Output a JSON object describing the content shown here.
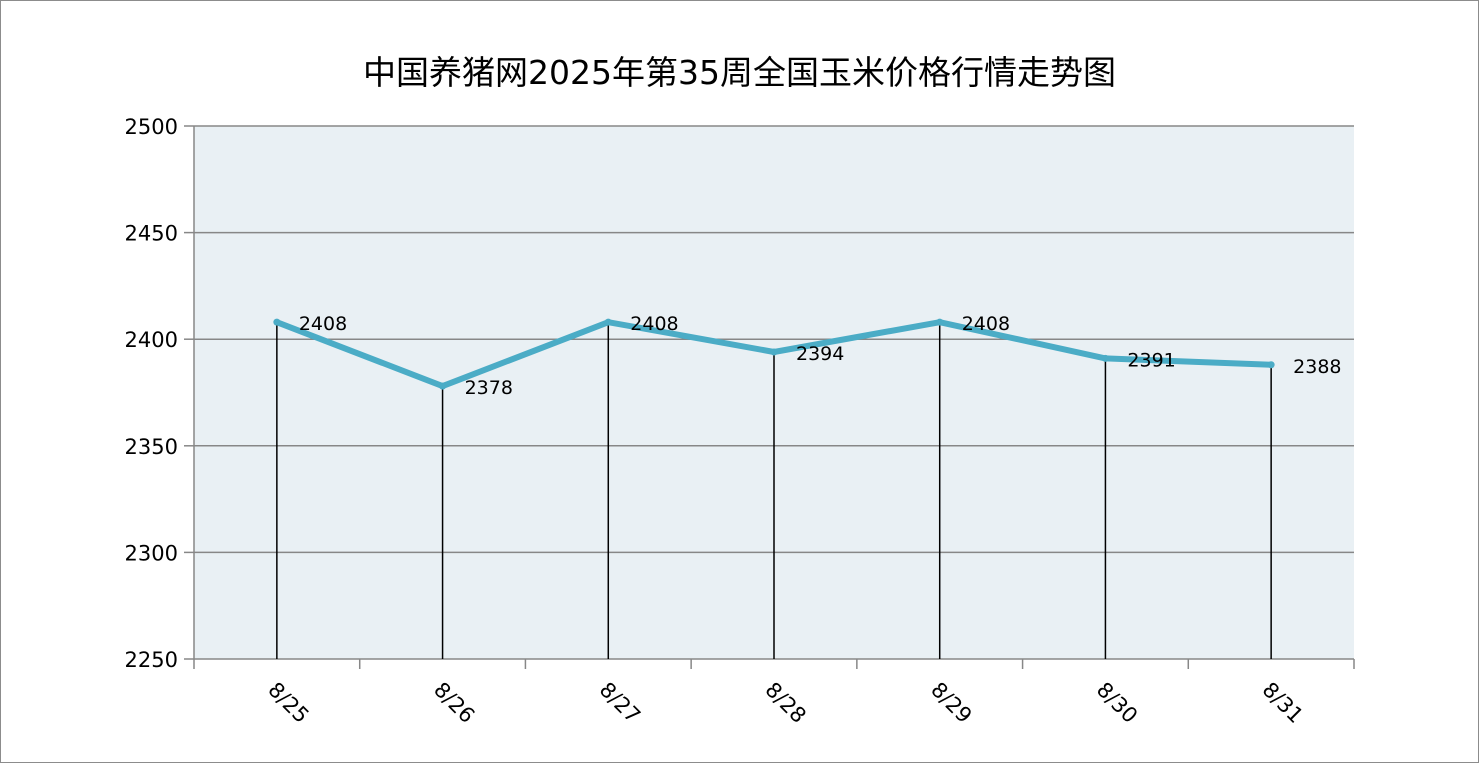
{
  "chart_data": {
    "type": "line",
    "title": "中国养猪网2025年第35周全国玉米价格行情走势图",
    "categories": [
      "8/25",
      "8/26",
      "8/27",
      "8/28",
      "8/29",
      "8/30",
      "8/31"
    ],
    "series": [
      {
        "values": [
          2408,
          2378,
          2408,
          2394,
          2408,
          2391,
          2388
        ]
      }
    ],
    "data_labels": [
      "2408",
      "2378",
      "2408",
      "2394",
      "2408",
      "2391",
      "2388"
    ],
    "ylim": [
      2250,
      2500
    ],
    "yticks": [
      2250,
      2300,
      2350,
      2400,
      2450,
      2500
    ],
    "drop_lines": true,
    "grid": true,
    "line_color": "#4bacc6",
    "plot_background": "#e9f0f4",
    "legend": "none"
  }
}
